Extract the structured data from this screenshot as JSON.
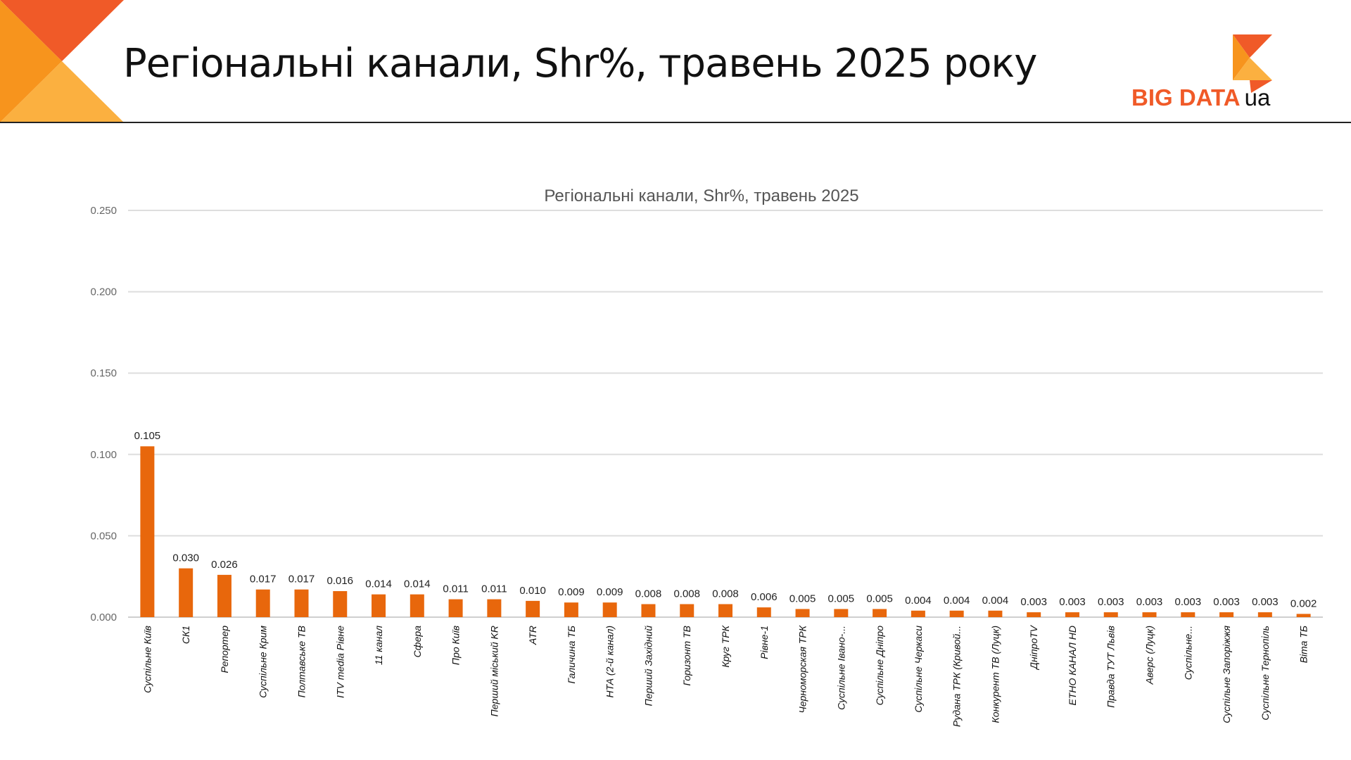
{
  "header": {
    "title": "Регіональні канали, Shr%, травень 2025 року",
    "logo_text": "BIG DATA",
    "logo_suffix": "ua"
  },
  "colors": {
    "bar": "#e8670c",
    "logo_orange": "#f05a28",
    "logo_light": "#fbb040",
    "logo_mid": "#f7941d"
  },
  "chart_data": {
    "type": "bar",
    "title": "Регіональні канали, Shr%, травень 2025",
    "xlabel": "",
    "ylabel": "",
    "ylim": [
      0,
      0.25
    ],
    "yticks": [
      "0.000",
      "0.050",
      "0.100",
      "0.150",
      "0.200",
      "0.250"
    ],
    "grid": true,
    "categories": [
      "Суспільне Київ",
      "СК1",
      "Репортер",
      "Суспільне Крим",
      "Полтавське ТВ",
      "ITV media Рівне",
      "11 канал",
      "Сфера",
      "Про Київ",
      "Перший міський KR",
      "ATR",
      "Галичина ТБ",
      "НТА (2-й канал)",
      "Перший Західний",
      "Горизонт ТВ",
      "Круг ТРК",
      "Рівне-1",
      "Черноморская ТРК",
      "Суспільне Івано-...",
      "Суспільне Дніпро",
      "Суспільне Черкаси",
      "Рудана ТРК (Кривой...",
      "Конкурент ТВ (Луцк)",
      "ДніпроTV",
      "ЕТНО КАНАЛ HD",
      "Правда ТУТ Львів",
      "Аверс (Луцк)",
      "Суспільне...",
      "Суспільне Запоріжжя",
      "Суспільне Тернопіль",
      "Віта ТБ"
    ],
    "values": [
      0.105,
      0.03,
      0.026,
      0.017,
      0.017,
      0.016,
      0.014,
      0.014,
      0.011,
      0.011,
      0.01,
      0.009,
      0.009,
      0.008,
      0.008,
      0.008,
      0.006,
      0.005,
      0.005,
      0.005,
      0.004,
      0.004,
      0.004,
      0.003,
      0.003,
      0.003,
      0.003,
      0.003,
      0.003,
      0.003,
      0.002
    ],
    "labels": [
      "0.105",
      "0.030",
      "0.026",
      "0.017",
      "0.017",
      "0.016",
      "0.014",
      "0.014",
      "0.011",
      "0.011",
      "0.010",
      "0.009",
      "0.009",
      "0.008",
      "0.008",
      "0.008",
      "0.006",
      "0.005",
      "0.005",
      "0.005",
      "0.004",
      "0.004",
      "0.004",
      "0.003",
      "0.003",
      "0.003",
      "0.003",
      "0.003",
      "0.003",
      "0.003",
      "0.002"
    ]
  }
}
